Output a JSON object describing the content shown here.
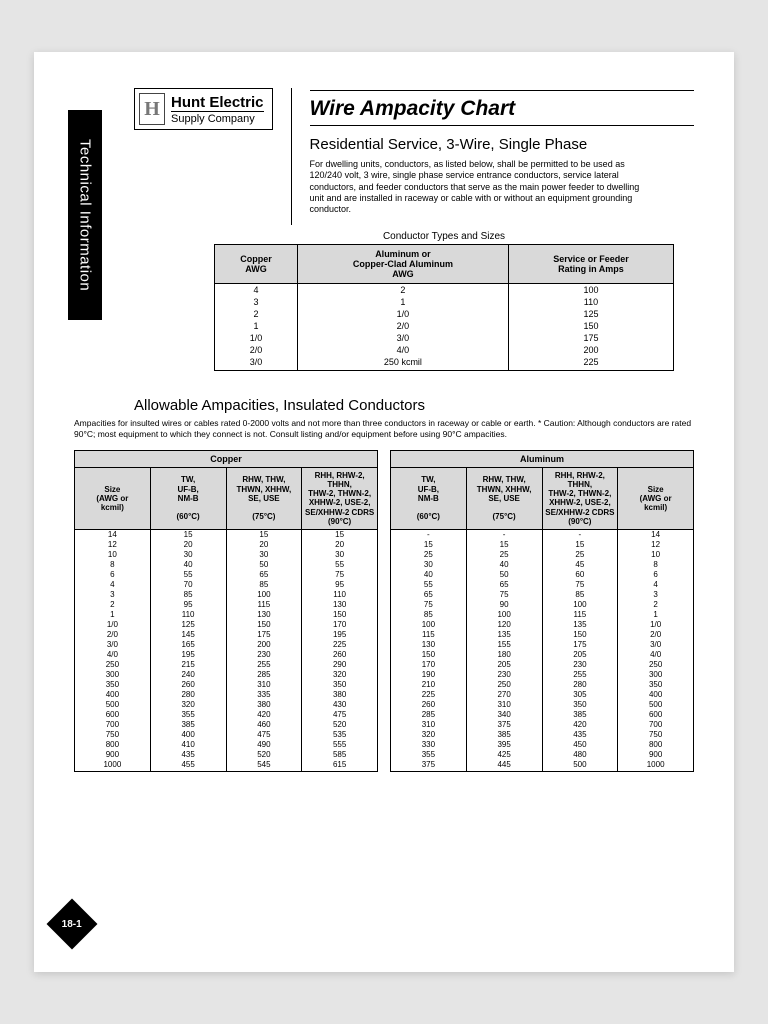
{
  "sidebar_label": "Technical Information",
  "logo": {
    "letter": "H",
    "line1": "Hunt Electric",
    "line2": "Supply Company"
  },
  "title": "Wire Ampacity Chart",
  "subtitle": "Residential Service, 3-Wire, Single Phase",
  "intro": "For dwelling units, conductors, as listed below, shall be permitted to be used as 120/240 volt, 3 wire, single phase service entrance conductors, service lateral conductors, and feeder conductors that serve as the main power feeder to dwelling unit and are installed in raceway or cable with or without an equipment grounding conductor.",
  "t1": {
    "caption": "Conductor Types and Sizes",
    "headers": [
      "Copper\nAWG",
      "Aluminum or\nCopper-Clad Aluminum\nAWG",
      "Service or Feeder\nRating in Amps"
    ],
    "rows": [
      [
        "4",
        "2",
        "100"
      ],
      [
        "3",
        "1",
        "110"
      ],
      [
        "2",
        "1/0",
        "125"
      ],
      [
        "1",
        "2/0",
        "150"
      ],
      [
        "1/0",
        "3/0",
        "175"
      ],
      [
        "2/0",
        "4/0",
        "200"
      ],
      [
        "3/0",
        "250 kcmil",
        "225"
      ]
    ]
  },
  "sec2": {
    "title": "Allowable Ampacities, Insulated Conductors",
    "intro": "Ampacities for insulted wires or cables rated 0-2000 volts and not more than three conductors in raceway or cable or earth.  * Caution: Although conductors are rated 90°C; most equipment to which they connect is not.  Consult listing and/or equipment before using 90°C ampacities."
  },
  "t2headers": {
    "size": "Size\n(AWG or\nkcmil)",
    "c60": "TW,\nUF-B,\nNM-B\n\n(60°C)",
    "c75": "RHW, THW,\nTHWN, XHHW,\nSE, USE\n\n(75°C)",
    "c90": "RHH, RHW-2, THHN,\nTHW-2, THWN-2,\nXHHW-2, USE-2,\nSE/XHHW-2 CDRS\n(90°C)"
  },
  "materials": [
    "Copper",
    "Aluminum"
  ],
  "sizes": [
    "14",
    "12",
    "10",
    "8",
    "6",
    "4",
    "3",
    "2",
    "1",
    "1/0",
    "2/0",
    "3/0",
    "4/0",
    "250",
    "300",
    "350",
    "400",
    "500",
    "600",
    "700",
    "750",
    "800",
    "900",
    "1000"
  ],
  "copper": {
    "c60": [
      "15",
      "20",
      "30",
      "40",
      "55",
      "70",
      "85",
      "95",
      "110",
      "125",
      "145",
      "165",
      "195",
      "215",
      "240",
      "260",
      "280",
      "320",
      "355",
      "385",
      "400",
      "410",
      "435",
      "455"
    ],
    "c75": [
      "15",
      "20",
      "30",
      "50",
      "65",
      "85",
      "100",
      "115",
      "130",
      "150",
      "175",
      "200",
      "230",
      "255",
      "285",
      "310",
      "335",
      "380",
      "420",
      "460",
      "475",
      "490",
      "520",
      "545"
    ],
    "c90": [
      "15",
      "20",
      "30",
      "55",
      "75",
      "95",
      "110",
      "130",
      "150",
      "170",
      "195",
      "225",
      "260",
      "290",
      "320",
      "350",
      "380",
      "430",
      "475",
      "520",
      "535",
      "555",
      "585",
      "615"
    ]
  },
  "aluminum": {
    "c60": [
      "-",
      "15",
      "25",
      "30",
      "40",
      "55",
      "65",
      "75",
      "85",
      "100",
      "115",
      "130",
      "150",
      "170",
      "190",
      "210",
      "225",
      "260",
      "285",
      "310",
      "320",
      "330",
      "355",
      "375"
    ],
    "c75": [
      "-",
      "15",
      "25",
      "40",
      "50",
      "65",
      "75",
      "90",
      "100",
      "120",
      "135",
      "155",
      "180",
      "205",
      "230",
      "250",
      "270",
      "310",
      "340",
      "375",
      "385",
      "395",
      "425",
      "445"
    ],
    "c90": [
      "-",
      "15",
      "25",
      "45",
      "60",
      "75",
      "85",
      "100",
      "115",
      "135",
      "150",
      "175",
      "205",
      "230",
      "255",
      "280",
      "305",
      "350",
      "385",
      "420",
      "435",
      "450",
      "480",
      "500"
    ]
  },
  "page_number": "18-1",
  "colors": {
    "header_bg": "#d9d9d9",
    "page_bg": "#ffffff",
    "outer_bg": "#e5e5e5"
  }
}
